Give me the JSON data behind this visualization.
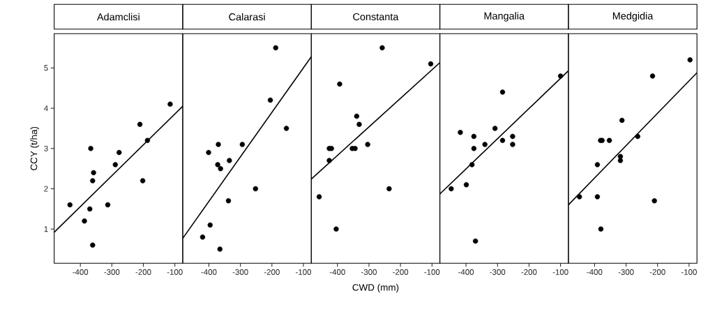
{
  "chart_data": [
    {
      "type": "scatter",
      "title": "Adamclisi",
      "ylabel": "CCY (t/ha)",
      "xlim": [
        -483,
        -75
      ],
      "ylim": [
        0.15,
        5.85
      ],
      "xticks": [
        -400,
        -300,
        -200,
        -100
      ],
      "yticks": [
        1,
        2,
        3,
        4,
        5
      ],
      "series": [
        {
          "marker": "circle",
          "color": "#000000",
          "x": [
            -433,
            -387,
            -370,
            -367,
            -358,
            -361,
            -361,
            -313,
            -289,
            -277,
            -211,
            -202,
            -187,
            -115
          ],
          "values": [
            1.6,
            1.2,
            1.5,
            3.0,
            2.4,
            2.2,
            0.6,
            1.6,
            2.6,
            2.9,
            3.6,
            2.2,
            3.2,
            4.1
          ]
        },
        {
          "type": "line",
          "color": "#000000",
          "x": [
            -483,
            -75
          ],
          "values": [
            0.92,
            4.05
          ]
        }
      ]
    },
    {
      "type": "scatter",
      "title": "Calarasi",
      "xlim": [
        -483,
        -75
      ],
      "ylim": [
        0.15,
        5.85
      ],
      "xticks": [
        -400,
        -300,
        -200,
        -100
      ],
      "tick_labels": "x",
      "series": [
        {
          "marker": "circle",
          "color": "#000000",
          "x": [
            -188,
            -205,
            -154,
            -370,
            -294,
            -401,
            -335,
            -372,
            -363,
            -252,
            -338,
            -396,
            -420,
            -365
          ],
          "values": [
            5.5,
            4.2,
            3.5,
            3.1,
            3.1,
            2.9,
            2.7,
            2.6,
            2.5,
            2.0,
            1.7,
            1.1,
            0.8,
            0.5
          ]
        },
        {
          "type": "line",
          "color": "#000000",
          "x": [
            -483,
            -75
          ],
          "values": [
            0.77,
            5.28
          ]
        }
      ]
    },
    {
      "type": "scatter",
      "title": "Constanta",
      "xlabel": "CWD (mm)",
      "xlim": [
        -483,
        -75
      ],
      "ylim": [
        0.15,
        5.85
      ],
      "xticks": [
        -400,
        -300,
        -200,
        -100
      ],
      "tick_labels": "x",
      "series": [
        {
          "marker": "circle",
          "color": "#000000",
          "x": [
            -258,
            -104,
            -393,
            -339,
            -331,
            -426,
            -419,
            -353,
            -344,
            -304,
            -426,
            -458,
            -236,
            -404
          ],
          "values": [
            5.5,
            5.1,
            4.6,
            3.8,
            3.6,
            3.0,
            3.0,
            3.0,
            3.0,
            3.1,
            2.7,
            1.8,
            2.0,
            1.0
          ]
        },
        {
          "type": "line",
          "color": "#000000",
          "x": [
            -483,
            -75
          ],
          "values": [
            2.24,
            5.13
          ]
        }
      ]
    },
    {
      "type": "scatter",
      "title": "Mangalia",
      "xlim": [
        -483,
        -75
      ],
      "ylim": [
        0.15,
        5.85
      ],
      "xticks": [
        -400,
        -300,
        -200,
        -100
      ],
      "tick_labels": "x",
      "series": [
        {
          "marker": "circle",
          "color": "#000000",
          "x": [
            -100,
            -284,
            -418,
            -375,
            -308,
            -340,
            -284,
            -252,
            -252,
            -375,
            -381,
            -399,
            -447,
            -370
          ],
          "values": [
            4.8,
            4.4,
            3.4,
            3.3,
            3.5,
            3.1,
            3.2,
            3.3,
            3.1,
            3.0,
            2.6,
            2.1,
            2.0,
            0.7
          ]
        },
        {
          "type": "line",
          "color": "#000000",
          "x": [
            -483,
            -75
          ],
          "values": [
            1.87,
            4.93
          ]
        }
      ]
    },
    {
      "type": "scatter",
      "title": "Medgidia",
      "xlim": [
        -483,
        -75
      ],
      "ylim": [
        0.15,
        5.85
      ],
      "xticks": [
        -400,
        -300,
        -200,
        -100
      ],
      "tick_labels": "x",
      "series": [
        {
          "marker": "circle",
          "color": "#000000",
          "x": [
            -97,
            -216,
            -313,
            -381,
            -376,
            -353,
            -263,
            -318,
            -318,
            -391,
            -448,
            -391,
            -210,
            -380
          ],
          "values": [
            5.2,
            4.8,
            3.7,
            3.2,
            3.2,
            3.2,
            3.3,
            2.8,
            2.7,
            2.6,
            1.8,
            1.8,
            1.7,
            1.0
          ]
        },
        {
          "type": "line",
          "color": "#000000",
          "x": [
            -483,
            -75
          ],
          "values": [
            1.6,
            4.88
          ]
        }
      ]
    }
  ]
}
